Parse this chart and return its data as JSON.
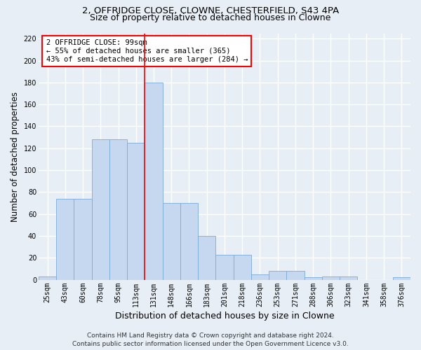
{
  "title_line1": "2, OFFRIDGE CLOSE, CLOWNE, CHESTERFIELD, S43 4PA",
  "title_line2": "Size of property relative to detached houses in Clowne",
  "xlabel": "Distribution of detached houses by size in Clowne",
  "ylabel": "Number of detached properties",
  "categories": [
    "25sqm",
    "43sqm",
    "60sqm",
    "78sqm",
    "95sqm",
    "113sqm",
    "131sqm",
    "148sqm",
    "166sqm",
    "183sqm",
    "201sqm",
    "218sqm",
    "236sqm",
    "253sqm",
    "271sqm",
    "288sqm",
    "306sqm",
    "323sqm",
    "341sqm",
    "358sqm",
    "376sqm"
  ],
  "values": [
    3,
    74,
    74,
    128,
    128,
    125,
    180,
    70,
    70,
    40,
    23,
    23,
    5,
    8,
    8,
    2,
    3,
    3,
    0,
    0,
    2
  ],
  "bar_color": "#c5d8f0",
  "bar_edge_color": "#7aabda",
  "vline_x": 5.5,
  "vline_color": "red",
  "annotation_text": "2 OFFRIDGE CLOSE: 99sqm\n← 55% of detached houses are smaller (365)\n43% of semi-detached houses are larger (284) →",
  "annotation_box_color": "white",
  "annotation_box_edge_color": "red",
  "ylim": [
    0,
    225
  ],
  "yticks": [
    0,
    20,
    40,
    60,
    80,
    100,
    120,
    140,
    160,
    180,
    200,
    220
  ],
  "footer_line1": "Contains HM Land Registry data © Crown copyright and database right 2024.",
  "footer_line2": "Contains public sector information licensed under the Open Government Licence v3.0.",
  "background_color": "#e8eef5",
  "grid_color": "white",
  "title_fontsize": 9.5,
  "subtitle_fontsize": 9,
  "axis_label_fontsize": 8.5,
  "tick_fontsize": 7,
  "footer_fontsize": 6.5,
  "annot_fontsize": 7.5
}
